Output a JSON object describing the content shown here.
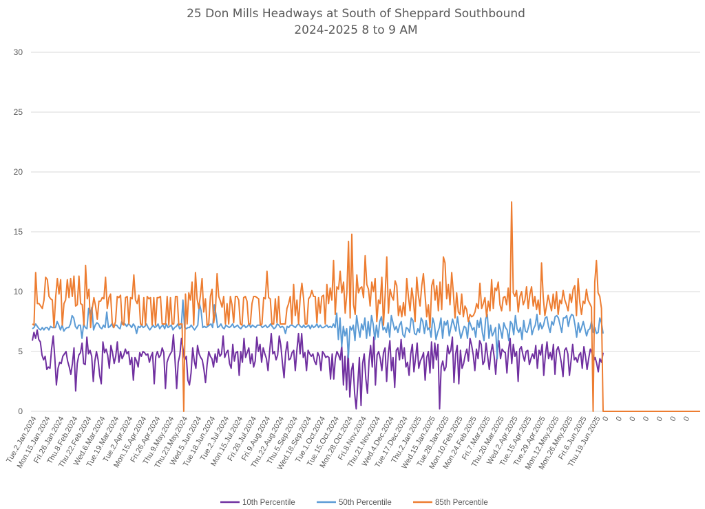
{
  "chart_data": {
    "type": "line",
    "title": "25 Don Mills Headways at South of Sheppard Southbound",
    "subtitle": "2024-2025 8 to 9 AM",
    "xlabel": "",
    "ylabel": "",
    "ylim": [
      0,
      30
    ],
    "yticks": [
      "0",
      "5",
      "10",
      "15",
      "20",
      "25",
      "30"
    ],
    "grid": true,
    "legend_position": "bottom",
    "x_tick_labels": [
      "Tue.2.Jan.2024",
      "Mon.15.Jan.2024",
      "Fri.26.Jan.2024",
      "Thu.8.Feb.2024",
      "Thu.22.Feb.2024",
      "Wed.6.Mar.2024",
      "Tue.19.Mar.2024",
      "Tue.2.Apr.2024",
      "Mon.15.Apr.2024",
      "Fri.26.Apr.2024",
      "Thu.9.May.2024",
      "Thu.23.May.2024",
      "Wed.5.Jun.2024",
      "Tue.18.Jun.2024",
      "Tue.2.Jul.2024",
      "Mon.15.Jul.2024",
      "Fri.26.Jul.2024",
      "Fri.9.Aug.2024",
      "Thu.22.Aug.2024",
      "Thu.5.Sep.2024",
      "Wed.18.Sep.2024",
      "Tue.1.Oct.2024",
      "Tue.15.Oct.2024",
      "Mon.28.Oct.2024",
      "Fri.8.Nov.2024",
      "Thu.21.Nov.2024",
      "Wed.4.Dec.2024",
      "Tue.17.Dec.2024",
      "Thu.2.Jan.2025",
      "Wed.15.Jan.2025",
      "Tue.28.Jan.2025",
      "Mon.10.Feb.2025",
      "Mon.24.Feb.2025",
      "Fri.7.Mar.2025",
      "Thu.20.Mar.2025",
      "Wed.2.Apr.2025",
      "Tue.15.Apr.2025",
      "Tue.29.Apr.2025",
      "Mon.12.May.2025",
      "Mon.26.May.2025",
      "Fri.6.Jun.2025",
      "Thu.19.Jun.2025",
      "0",
      "0",
      "0",
      "0",
      "0",
      "0",
      "0"
    ],
    "series": [
      {
        "name": "10th Percentile",
        "color": "#7030a0",
        "values": [
          5.9,
          6.6,
          6.1,
          6.8,
          6.0,
          5.8,
          4.7,
          4.3,
          4.6,
          3.5,
          3.7,
          3.6,
          5.2,
          6.3,
          4.5,
          2.2,
          3.6,
          4.1,
          4.0,
          4.6,
          4.8,
          5.0,
          4.2,
          3.7,
          3.1,
          4.0,
          5.3,
          1.7,
          4.0,
          4.7,
          4.9,
          5.7,
          4.0,
          3.9,
          6.2,
          4.8,
          5.1,
          4.6,
          2.5,
          4.2,
          5.0,
          4.3,
          3.0,
          2.3,
          5.8,
          4.9,
          5.2,
          4.7,
          3.6,
          5.5,
          4.9,
          4.0,
          4.6,
          5.8,
          4.1,
          5.0,
          4.4,
          4.7,
          5.2,
          4.8,
          5.0,
          3.9,
          4.5,
          2.6,
          4.5,
          4.2,
          3.7,
          4.9,
          4.6,
          5.0,
          4.9,
          4.7,
          4.8,
          4.1,
          4.6,
          4.9,
          2.3,
          4.6,
          5.0,
          4.5,
          4.7,
          5.3,
          4.9,
          1.9,
          4.1,
          4.5,
          4.8,
          5.0,
          6.4,
          4.2,
          1.9,
          4.1,
          4.7,
          6.1,
          5.2,
          4.3,
          4.6,
          2.6,
          2.2,
          3.2,
          5.3,
          4.2,
          3.6,
          5.5,
          4.8,
          4.5,
          4.3,
          3.5,
          2.4,
          3.9,
          5.0,
          4.6,
          4.4,
          3.7,
          4.8,
          4.1,
          5.2,
          4.6,
          4.8,
          6.3,
          4.5,
          4.9,
          5.1,
          4.0,
          3.6,
          5.6,
          4.2,
          4.9,
          5.0,
          3.0,
          5.0,
          4.1,
          6.1,
          4.5,
          4.9,
          5.3,
          4.0,
          4.8,
          3.7,
          4.2,
          6.2,
          5.0,
          5.6,
          4.1,
          5.3,
          4.8,
          4.4,
          3.4,
          5.0,
          6.5,
          4.8,
          5.0,
          4.3,
          4.7,
          6.3,
          5.5,
          4.0,
          2.8,
          4.9,
          5.8,
          4.3,
          4.4,
          4.9,
          5.1,
          3.4,
          5.1,
          6.5,
          4.8,
          6.5,
          4.5,
          4.9,
          3.4,
          5.1,
          4.8,
          4.6,
          4.8,
          4.2,
          3.9,
          4.9,
          4.6,
          3.4,
          5.0,
          4.8,
          4.5,
          4.6,
          4.5,
          2.7,
          4.8,
          2.7,
          4.4,
          5.0,
          4.7,
          4.3,
          5.5,
          2.2,
          4.6,
          1.8,
          5.1,
          1.2,
          3.4,
          4.0,
          1.5,
          0.2,
          2.3,
          4.5,
          0.5,
          4.0,
          4.8,
          2.7,
          1.5,
          4.2,
          5.5,
          3.7,
          6.2,
          2.2,
          4.7,
          5.0,
          4.4,
          3.4,
          4.9,
          5.3,
          2.5,
          4.8,
          5.9,
          3.4,
          4.5,
          2.0,
          5.1,
          5.3,
          4.3,
          6.0,
          4.4,
          5.3,
          3.7,
          4.1,
          3.0,
          4.8,
          5.6,
          3.3,
          4.4,
          5.7,
          3.6,
          4.2,
          4.5,
          4.9,
          2.6,
          4.5,
          5.0,
          3.2,
          5.8,
          3.6,
          5.7,
          4.3,
          5.6,
          0.2,
          3.7,
          4.2,
          3.4,
          3.7,
          5.5,
          4.8,
          5.1,
          6.2,
          2.4,
          4.8,
          5.5,
          2.3,
          5.1,
          3.6,
          4.0,
          4.7,
          5.2,
          4.2,
          6.1,
          5.5,
          4.7,
          3.4,
          5.2,
          4.4,
          5.9,
          5.6,
          3.9,
          4.2,
          5.7,
          4.6,
          3.5,
          4.9,
          5.6,
          4.6,
          3.1,
          5.0,
          5.9,
          4.4,
          5.2,
          5.0,
          4.9,
          3.2,
          5.1,
          6.1,
          4.0,
          5.6,
          4.6,
          5.0,
          2.5,
          5.2,
          5.4,
          4.7,
          4.2,
          5.0,
          5.1,
          3.9,
          4.4,
          4.8,
          4.4,
          5.5,
          3.6,
          5.1,
          4.7,
          5.6,
          3.0,
          4.7,
          5.8,
          4.4,
          4.9,
          4.3,
          5.6,
          3.1,
          5.1,
          5.4,
          4.8,
          4.0,
          2.9,
          5.1,
          5.3,
          4.8,
          3.0,
          4.2,
          5.6,
          4.3,
          4.5,
          4.1,
          4.7,
          4.9,
          3.6,
          5.4,
          4.6,
          3.5,
          4.4,
          5.2,
          4.9,
          4.2,
          4.5,
          4.0,
          3.3,
          4.4,
          4.1,
          4.9
        ]
      },
      {
        "name": "50th Percentile",
        "color": "#5b9bd5",
        "values": [
          6.9,
          7.0,
          7.3,
          7.1,
          6.9,
          6.8,
          7.0,
          6.8,
          7.0,
          7.0,
          6.8,
          7.1,
          7.0,
          7.0,
          7.0,
          7.5,
          7.2,
          6.8,
          7.2,
          6.7,
          6.9,
          7.0,
          7.0,
          7.3,
          8.0,
          7.8,
          7.1,
          6.9,
          7.2,
          7.2,
          6.1,
          7.3,
          7.0,
          6.9,
          8.6,
          8.0,
          8.7,
          6.8,
          7.2,
          7.4,
          7.3,
          7.0,
          6.9,
          7.2,
          7.0,
          8.3,
          7.0,
          7.1,
          7.3,
          7.0,
          7.2,
          7.2,
          7.0,
          6.9,
          7.5,
          7.3,
          7.3,
          7.1,
          7.3,
          7.2,
          7.0,
          7.3,
          7.1,
          6.5,
          7.1,
          7.0,
          7.2,
          7.0,
          7.1,
          7.3,
          7.0,
          6.8,
          7.0,
          7.2,
          7.0,
          7.1,
          7.3,
          6.9,
          7.1,
          7.2,
          6.9,
          7.3,
          7.0,
          7.1,
          7.2,
          6.8,
          7.0,
          7.1,
          7.3,
          6.9,
          7.0,
          9.3,
          7.0,
          6.9,
          7.0,
          7.0,
          7.2,
          7.0,
          6.8,
          7.0,
          7.2,
          9.0,
          8.4,
          7.0,
          7.1,
          7.0,
          7.1,
          7.2,
          7.3,
          7.0,
          8.9,
          8.1,
          7.0,
          7.1,
          7.3,
          7.0,
          6.9,
          7.2,
          7.1,
          7.0,
          7.1,
          7.3,
          7.0,
          7.1,
          7.2,
          7.0,
          6.9,
          7.1,
          7.2,
          7.0,
          7.1,
          7.3,
          7.0,
          7.2,
          7.1,
          7.0,
          7.2,
          7.2,
          7.2,
          7.0,
          7.1,
          7.2,
          7.0,
          7.1,
          7.3,
          7.1,
          6.9,
          7.0,
          7.3,
          7.2,
          7.0,
          7.1,
          7.0,
          6.5,
          7.1,
          7.0,
          7.2,
          7.2,
          7.1,
          7.0,
          7.2,
          7.3,
          7.1,
          7.0,
          7.2,
          7.0,
          7.1,
          7.2,
          6.9,
          7.2,
          7.0,
          7.1,
          7.3,
          7.0,
          7.2,
          7.0,
          7.0,
          7.1,
          7.2,
          7.0,
          7.1,
          7.0,
          7.3,
          7.0,
          8.2,
          6.0,
          7.8,
          5.4,
          7.1,
          6.3,
          6.9,
          4.5,
          7.1,
          6.8,
          7.2,
          5.9,
          8.0,
          7.0,
          6.2,
          7.3,
          6.8,
          7.8,
          6.1,
          7.5,
          6.3,
          8.0,
          7.3,
          6.0,
          7.2,
          6.2,
          7.5,
          7.9,
          6.8,
          7.0,
          6.6,
          7.4,
          6.2,
          8.0,
          7.4,
          6.8,
          7.1,
          6.6,
          7.2,
          7.5,
          6.4,
          6.2,
          7.0,
          6.9,
          6.6,
          7.8,
          7.6,
          6.5,
          6.4,
          6.9,
          6.6,
          7.8,
          7.5,
          6.5,
          7.6,
          6.8,
          7.0,
          6.2,
          7.8,
          7.3,
          6.0,
          6.6,
          7.0,
          7.8,
          6.1,
          7.5,
          7.2,
          7.6,
          6.3,
          7.0,
          7.7,
          7.2,
          6.7,
          7.9,
          6.9,
          6.1,
          6.6,
          7.1,
          7.0,
          6.1,
          7.6,
          7.2,
          6.8,
          7.0,
          6.2,
          7.6,
          7.0,
          7.8,
          6.6,
          5.9,
          7.7,
          8.1,
          6.1,
          7.2,
          6.3,
          6.6,
          7.0,
          4.4,
          7.3,
          6.8,
          6.1,
          7.4,
          7.0,
          6.8,
          5.9,
          7.5,
          7.3,
          6.4,
          8.0,
          6.9,
          6.6,
          7.0,
          6.0,
          7.6,
          6.7,
          6.6,
          7.1,
          7.7,
          6.4,
          6.9,
          7.2,
          8.1,
          6.8,
          7.4,
          6.9,
          7.2,
          7.8,
          7.9,
          7.1,
          6.6,
          7.5,
          7.2,
          7.9,
          8.0,
          7.8,
          7.2,
          6.6,
          7.8,
          7.8,
          8.0,
          7.1,
          7.8,
          8.1,
          8.0,
          7.2,
          6.2,
          7.4,
          6.6,
          7.0,
          7.5,
          6.9,
          6.3,
          6.8,
          6.9,
          7.5,
          6.6,
          7.0,
          6.5,
          6.6,
          7.8,
          7.4,
          6.5
        ]
      },
      {
        "name": "85th Percentile",
        "color": "#ed7d31",
        "values": [
          7.3,
          7.2,
          11.6,
          9.0,
          9.0,
          8.8,
          8.6,
          9.3,
          11.2,
          11.0,
          9.6,
          9.4,
          9.3,
          7.0,
          9.5,
          11.1,
          9.8,
          11.0,
          7.2,
          9.0,
          9.3,
          11.0,
          9.5,
          11.1,
          9.6,
          11.3,
          8.8,
          8.9,
          11.3,
          9.0,
          8.9,
          7.2,
          12.2,
          9.4,
          10.2,
          7.0,
          8.6,
          9.5,
          8.8,
          7.7,
          9.2,
          9.2,
          9.5,
          9.4,
          11.2,
          8.6,
          9.5,
          9.8,
          7.4,
          7.0,
          7.5,
          9.6,
          9.5,
          9.7,
          7.3,
          7.2,
          9.5,
          9.6,
          7.3,
          9.5,
          9.4,
          11.4,
          9.3,
          9.0,
          9.7,
          7.3,
          7.2,
          9.5,
          7.2,
          9.6,
          9.4,
          9.5,
          7.2,
          9.5,
          7.2,
          9.5,
          9.5,
          9.6,
          7.3,
          7.3,
          7.3,
          9.6,
          7.2,
          9.5,
          7.3,
          7.3,
          9.6,
          9.6,
          7.2,
          7.3,
          7.3,
          0.0,
          9.8,
          7.3,
          9.9,
          9.3,
          10.8,
          7.2,
          11.6,
          9.4,
          8.6,
          9.7,
          11.1,
          8.3,
          9.4,
          7.2,
          7.3,
          9.6,
          10.2,
          7.4,
          8.4,
          11.5,
          9.6,
          9.2,
          8.7,
          9.6,
          7.3,
          9.0,
          7.3,
          9.6,
          8.9,
          7.4,
          9.6,
          9.6,
          9.3,
          7.3,
          7.2,
          9.5,
          9.6,
          9.2,
          7.3,
          7.3,
          9.0,
          9.6,
          9.6,
          9.5,
          9.4,
          7.2,
          7.3,
          9.5,
          9.4,
          11.7,
          9.5,
          9.4,
          7.3,
          7.3,
          9.4,
          7.4,
          9.6,
          7.3,
          7.3,
          7.3,
          7.3,
          8.6,
          9.0,
          9.6,
          7.3,
          10.6,
          8.0,
          9.3,
          7.3,
          9.6,
          10.7,
          9.4,
          7.3,
          7.3,
          9.4,
          9.6,
          10.1,
          9.6,
          9.6,
          7.4,
          9.5,
          8.2,
          9.6,
          9.7,
          7.3,
          10.6,
          9.0,
          10.3,
          9.3,
          12.6,
          8.1,
          10.4,
          10.2,
          11.7,
          9.9,
          10.8,
          8.2,
          9.9,
          14.2,
          7.8,
          14.8,
          8.9,
          8.1,
          11.4,
          9.9,
          10.3,
          10.4,
          9.5,
          13.0,
          10.6,
          10.2,
          8.8,
          10.8,
          10.0,
          11.1,
          7.5,
          9.3,
          9.0,
          11.2,
          7.2,
          9.7,
          12.9,
          8.2,
          10.2,
          9.6,
          9.3,
          10.9,
          10.5,
          8.0,
          8.8,
          7.9,
          9.1,
          8.0,
          11.1,
          9.6,
          8.4,
          10.3,
          9.3,
          7.5,
          11.2,
          9.7,
          8.8,
          10.5,
          11.5,
          9.7,
          7.9,
          8.9,
          7.0,
          10.5,
          11.0,
          9.3,
          10.5,
          8.4,
          10.8,
          8.5,
          12.9,
          12.4,
          9.4,
          10.6,
          8.9,
          11.6,
          9.9,
          7.8,
          9.9,
          8.3,
          8.1,
          9.8,
          7.9,
          8.8,
          8.5,
          7.5,
          8.1,
          7.9,
          8.0,
          8.3,
          9.0,
          8.6,
          10.7,
          8.6,
          9.0,
          9.5,
          7.9,
          9.2,
          8.4,
          11.0,
          8.6,
          10.3,
          10.1,
          10.8,
          8.9,
          8.4,
          9.5,
          9.6,
          8.9,
          10.3,
          8.4,
          17.5,
          9.9,
          9.6,
          10.1,
          8.3,
          9.6,
          10.0,
          8.9,
          9.3,
          10.4,
          8.6,
          9.8,
          10.4,
          8.8,
          9.6,
          8.5,
          9.3,
          8.1,
          12.4,
          9.6,
          8.0,
          8.8,
          9.7,
          9.0,
          8.4,
          9.8,
          8.6,
          10.0,
          8.1,
          9.3,
          9.0,
          10.1,
          9.3,
          8.9,
          8.4,
          9.8,
          9.1,
          10.2,
          10.5,
          8.0,
          11.1,
          9.1,
          8.1,
          9.2,
          9.0,
          10.2,
          9.3,
          9.0,
          8.7,
          0.0,
          10.8,
          12.6,
          9.9,
          9.6,
          8.6,
          0.0
        ]
      }
    ],
    "trailing_zero_categories": 7
  }
}
